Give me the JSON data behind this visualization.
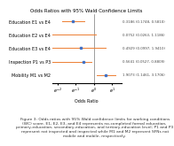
{
  "title": "Odds Ratios with 95% Wald Confidence Limits",
  "xlabel": "Odds Ratio",
  "categories": [
    "Education E1 vs E4",
    "Education E2 vs E4",
    "Education E3 vs E4",
    "Inspection P1 vs P3",
    "Mobility M1 vs M2"
  ],
  "or_values": [
    0.3186,
    0.0752,
    0.4929,
    0.5641,
    1.9073
  ],
  "ci_lower": [
    0.1748,
    0.0263,
    0.0997,
    0.0527,
    1.1461
  ],
  "ci_upper": [
    0.581,
    1.1186,
    1.941,
    0.8809,
    3.1706
  ],
  "annotations": [
    "0.3186 (0.1748, 0.5810)",
    "0.0752 (0.0263, 1.1186)",
    "0.4929 (0.0997, 1.9410)",
    "0.5641 (0.0527, 0.8809)",
    "1.9073 (1.1461, 3.1706)"
  ],
  "point_color": "#4472c4",
  "line_color": "#ed7d31",
  "vline_color": "#555555",
  "xlim_log": [
    -2.3,
    1.5
  ],
  "xticks_log": [
    -2,
    -1,
    0,
    1
  ],
  "background_color": "#ffffff",
  "title_fontsize": 4.0,
  "label_fontsize": 3.5,
  "tick_fontsize": 3.5,
  "annot_fontsize": 2.8,
  "caption": "Figure 3: Odds ratios with 95% Wald confidence limits for working conditions\n(WC) score. E1, E2, E3, and E4 represents no-completed formal education,\nprimary-education, secondary-education, and tertiary-education level; P1 and P3\nrepresent not inspected and inspected while M1 and M2 represent SFNs not\nmobile and mobile, respectively.",
  "caption_fontsize": 3.2
}
